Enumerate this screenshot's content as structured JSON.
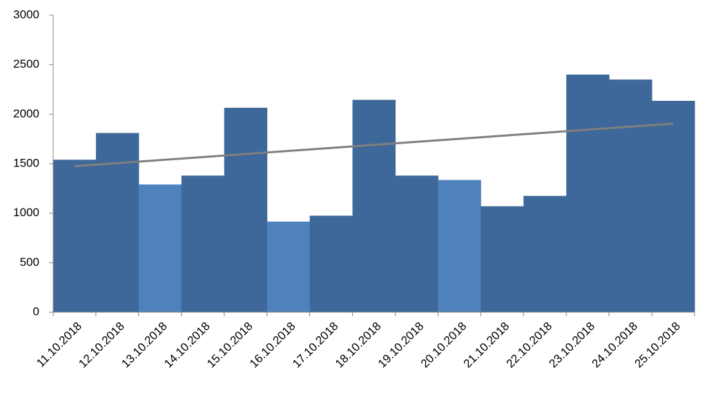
{
  "chart_data": {
    "type": "bar",
    "categories": [
      "11.10.2018",
      "12.10.2018",
      "13.10.2018",
      "14.10.2018",
      "15.10.2018",
      "16.10.2018",
      "17.10.2018",
      "18.10.2018",
      "19.10.2018",
      "20.10.2018",
      "21.10.2018",
      "22.10.2018",
      "23.10.2018",
      "24.10.2018",
      "25.10.2018"
    ],
    "values": [
      1540,
      1810,
      1290,
      1380,
      2065,
      915,
      975,
      2145,
      1380,
      1335,
      1070,
      1175,
      2400,
      2350,
      2135
    ],
    "colors": [
      "#3e6899",
      "#3e6899",
      "#4f81bd",
      "#3e6899",
      "#3e6899",
      "#4f81bd",
      "#3e6899",
      "#3e6899",
      "#3e6899",
      "#4f81bd",
      "#3e6899",
      "#3e6899",
      "#3e6899",
      "#3e6899",
      "#3e6899"
    ],
    "trendline": {
      "color": "#7f7f7f",
      "values": [
        1475,
        1905
      ]
    },
    "ylim": [
      0,
      3000
    ],
    "yticks": [
      0,
      500,
      1000,
      1500,
      2000,
      2500,
      3000
    ],
    "grid": false
  }
}
